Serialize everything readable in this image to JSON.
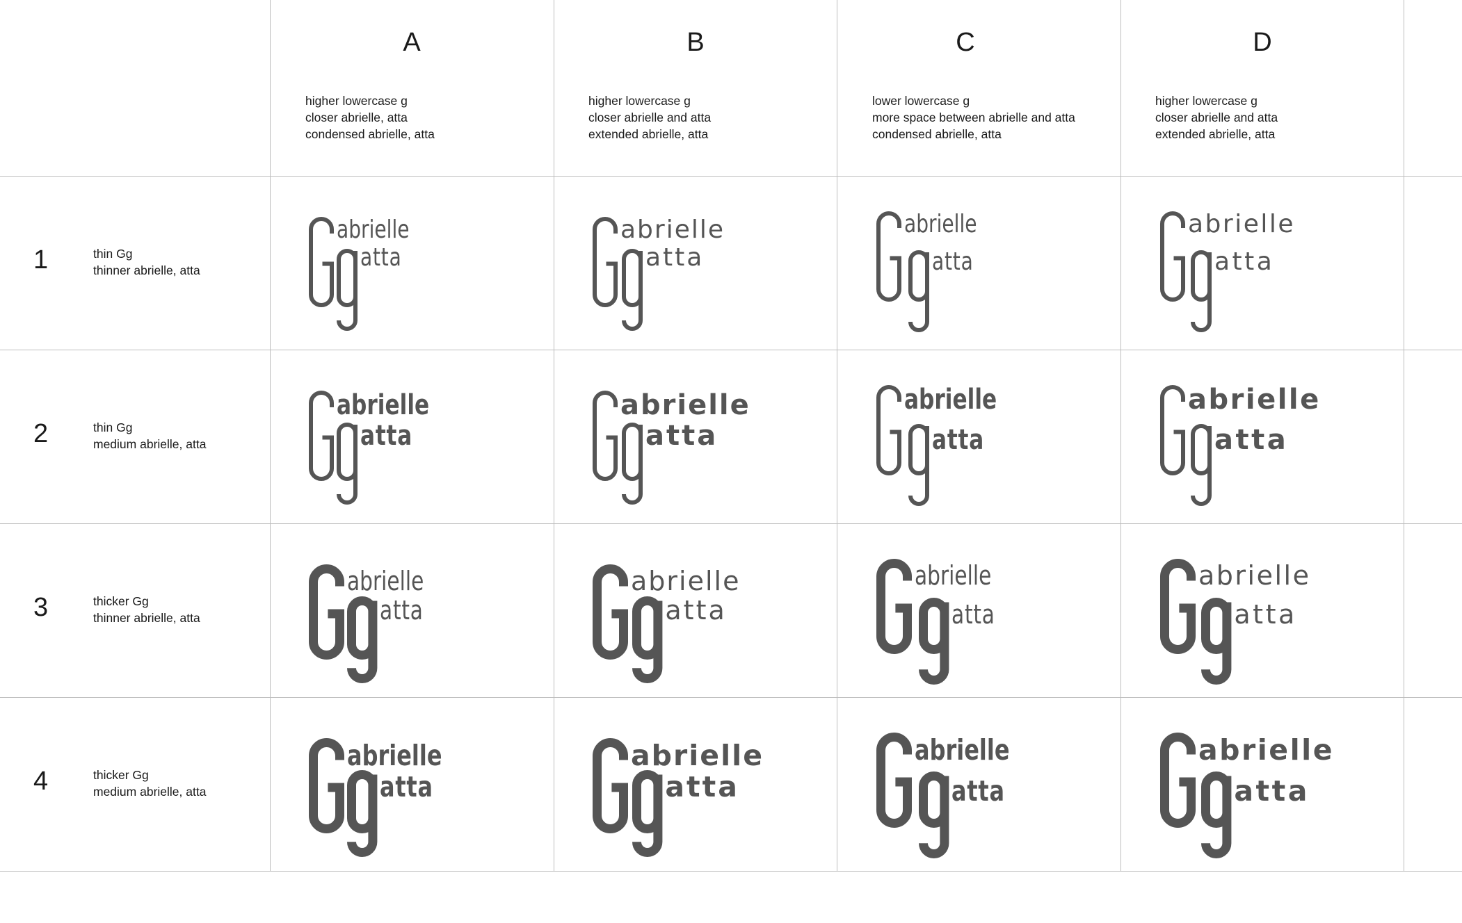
{
  "columns": [
    {
      "letter": "A",
      "notes": [
        "higher lowercase g",
        "closer abrielle, atta",
        "condensed abrielle, atta"
      ]
    },
    {
      "letter": "B",
      "notes": [
        "higher lowercase g",
        "closer abrielle and atta",
        "extended abrielle, atta"
      ]
    },
    {
      "letter": "C",
      "notes": [
        "lower lowercase g",
        "more space between abrielle and atta",
        "condensed abrielle, atta"
      ]
    },
    {
      "letter": "D",
      "notes": [
        "higher lowercase g",
        "closer abrielle and atta",
        "extended abrielle, atta"
      ]
    }
  ],
  "rows": [
    {
      "number": "1",
      "notes": [
        "thin Gg",
        "thinner abrielle, atta"
      ]
    },
    {
      "number": "2",
      "notes": [
        "thin Gg",
        "medium abrielle, atta"
      ]
    },
    {
      "number": "3",
      "notes": [
        "thicker Gg",
        "thinner abrielle, atta"
      ]
    },
    {
      "number": "4",
      "notes": [
        "thicker Gg",
        "medium abrielle, atta"
      ]
    }
  ],
  "logo": {
    "line1": "abrielle",
    "line2": "atta",
    "color": "#555555"
  },
  "colors": {
    "grid": "#bdbdbd",
    "text": "#1a1a1a",
    "logo": "#555555"
  }
}
